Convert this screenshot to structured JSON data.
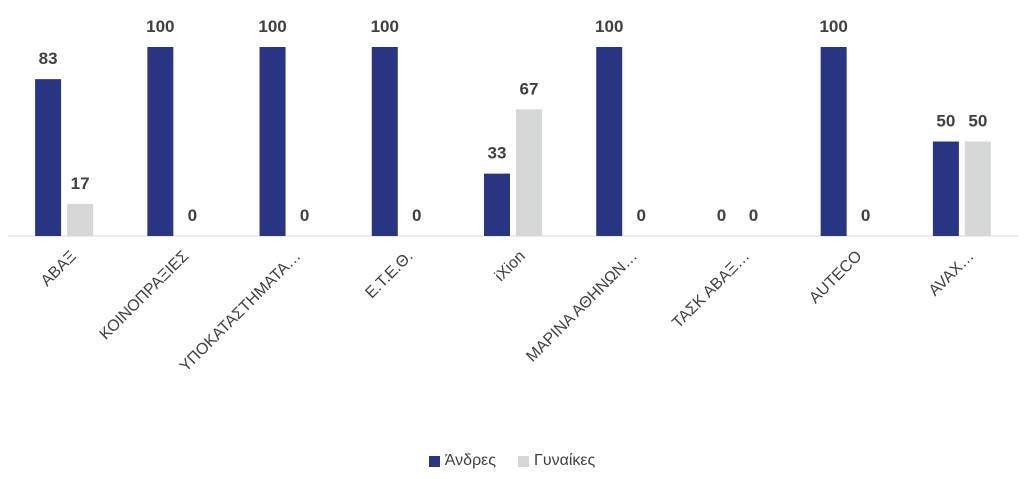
{
  "chart_data": {
    "type": "bar",
    "title": "",
    "xlabel": "",
    "ylabel": "",
    "ylim": [
      0,
      100
    ],
    "categories": [
      "ΑΒΑΞ",
      "ΚΟΙΝΟΠΡΑΞΙΕΣ",
      "ΥΠΟΚΑΤΑΣΤΗΜΑΤΑ…",
      "Ε.Τ.Ε.Θ.",
      "iXion",
      "ΜΑΡΙΝΑ ΑΘΗΝΩΝ…",
      "ΤΑΣΚ ΑΒΑΞ…",
      "AUTECO",
      "AVAX…"
    ],
    "series": [
      {
        "name": "Άνδρες",
        "color": "#283583",
        "values": [
          83,
          100,
          100,
          100,
          33,
          100,
          0,
          100,
          50
        ]
      },
      {
        "name": "Γυναίκες",
        "color": "#d5d8d7",
        "values": [
          17,
          0,
          0,
          0,
          67,
          0,
          0,
          0,
          50
        ]
      }
    ],
    "legend_position": "bottom",
    "grid": false,
    "data_labels": true
  }
}
